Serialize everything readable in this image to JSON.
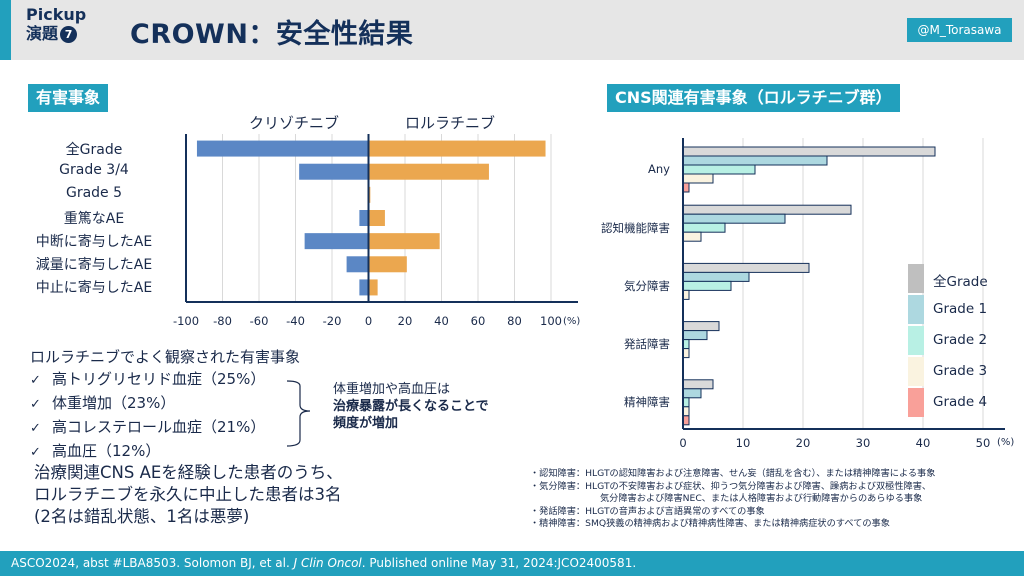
{
  "header": {
    "pickup_line1": "Pickup",
    "pickup_line2": "演題",
    "pickup_number": "7",
    "title": "CROWN：安全性結果",
    "handle": "@M_Torasawa"
  },
  "left_section": {
    "label": "有害事象",
    "group_left": "クリゾチニブ",
    "group_right": "ロルラチニブ"
  },
  "ae_list": {
    "heading": "ロルラチニブでよく観察された有害事象",
    "items": [
      "高トリグリセリド血症（25%）",
      "体重増加（23%）",
      "高コレステロール血症（21%）",
      "高血圧（12%）"
    ],
    "check_icon": "✓",
    "brace_note_line1": "体重増加や高血圧は",
    "brace_note_line2": "治療暴露が長くなることで",
    "brace_note_line3": "頻度が増加"
  },
  "cns_note": {
    "line1": "治療関連CNS AEを経験した患者のうち、",
    "line2": "ロルラチニブを永久に中止した患者は3名",
    "line3": "(2名は錯乱状態、1名は悪夢)"
  },
  "right_section": {
    "label": "CNS関連有害事象（ロルラチニブ群）"
  },
  "footnotes": [
    {
      "line": "・認知障害：HLGTの認知障害および注意障害、せん妄（錯乱を含む）、または精神障害による事象"
    },
    {
      "line": "・気分障害：HLGTの不安障害および症状、抑うつ気分障害および障害、躁病および双極性障害、"
    },
    {
      "line": "気分障害および障害NEC、または人格障害および行動障害からのあらゆる事象",
      "continuation": true
    },
    {
      "line": "・発話障害：HLGTの音声および言語異常のすべての事象"
    },
    {
      "line": "・精神障害：SMQ狭義の精神病および精神病性障害、または精神病症状のすべての事象"
    }
  ],
  "footer": {
    "text_before": "ASCO2024, abst #LBA8503. Solomon BJ, et al. ",
    "journal": "J Clin Oncol",
    "text_after": ". Published online May 31, 2024:JCO2400581."
  },
  "chart_data": [
    {
      "type": "bar",
      "orientation": "horizontal-diverging",
      "title": "有害事象",
      "categories": [
        "全Grade",
        "Grade 3/4",
        "Grade 5",
        "重篤なAE",
        "中断に寄与したAE",
        "減量に寄与したAE",
        "中止に寄与したAE"
      ],
      "series": [
        {
          "name": "クリゾチニブ",
          "color": "#5b87c5",
          "values": [
            -94,
            -38,
            0,
            -5,
            -35,
            -12,
            -5
          ]
        },
        {
          "name": "ロルラチニブ",
          "color": "#eba74f",
          "values": [
            97,
            66,
            1,
            9,
            39,
            21,
            5
          ]
        }
      ],
      "xlim": [
        -100,
        100
      ],
      "xticks": [
        "-100",
        "-80",
        "-60",
        "-40",
        "-20",
        "0",
        "20",
        "40",
        "60",
        "80",
        "100"
      ],
      "xunit": "(%)",
      "grid": true,
      "legend": "top (group labels above bars)"
    },
    {
      "type": "bar",
      "orientation": "horizontal-grouped",
      "title": "CNS関連有害事象（ロルラチニブ群）",
      "categories": [
        "Any",
        "認知機能障害",
        "気分障害",
        "発話障害",
        "精神障害"
      ],
      "series": [
        {
          "name": "全Grade",
          "color": "#d9d9d9",
          "legend_color": "#bfbfbf",
          "values": [
            42,
            28,
            21,
            6,
            5
          ]
        },
        {
          "name": "Grade 1",
          "color": "#add8e0",
          "values": [
            24,
            17,
            11,
            4,
            3
          ]
        },
        {
          "name": "Grade 2",
          "color": "#b8f0e4",
          "values": [
            12,
            7,
            8,
            1,
            1
          ]
        },
        {
          "name": "Grade 3",
          "color": "#faf3e0",
          "values": [
            5,
            3,
            1,
            1,
            1
          ]
        },
        {
          "name": "Grade 4",
          "color": "#f9a099",
          "values": [
            1,
            0,
            0,
            0,
            1
          ]
        }
      ],
      "xlim": [
        0,
        50
      ],
      "xticks": [
        "0",
        "10",
        "20",
        "30",
        "40",
        "50"
      ],
      "xunit": "(%)",
      "grid": true,
      "legend": "right"
    }
  ]
}
